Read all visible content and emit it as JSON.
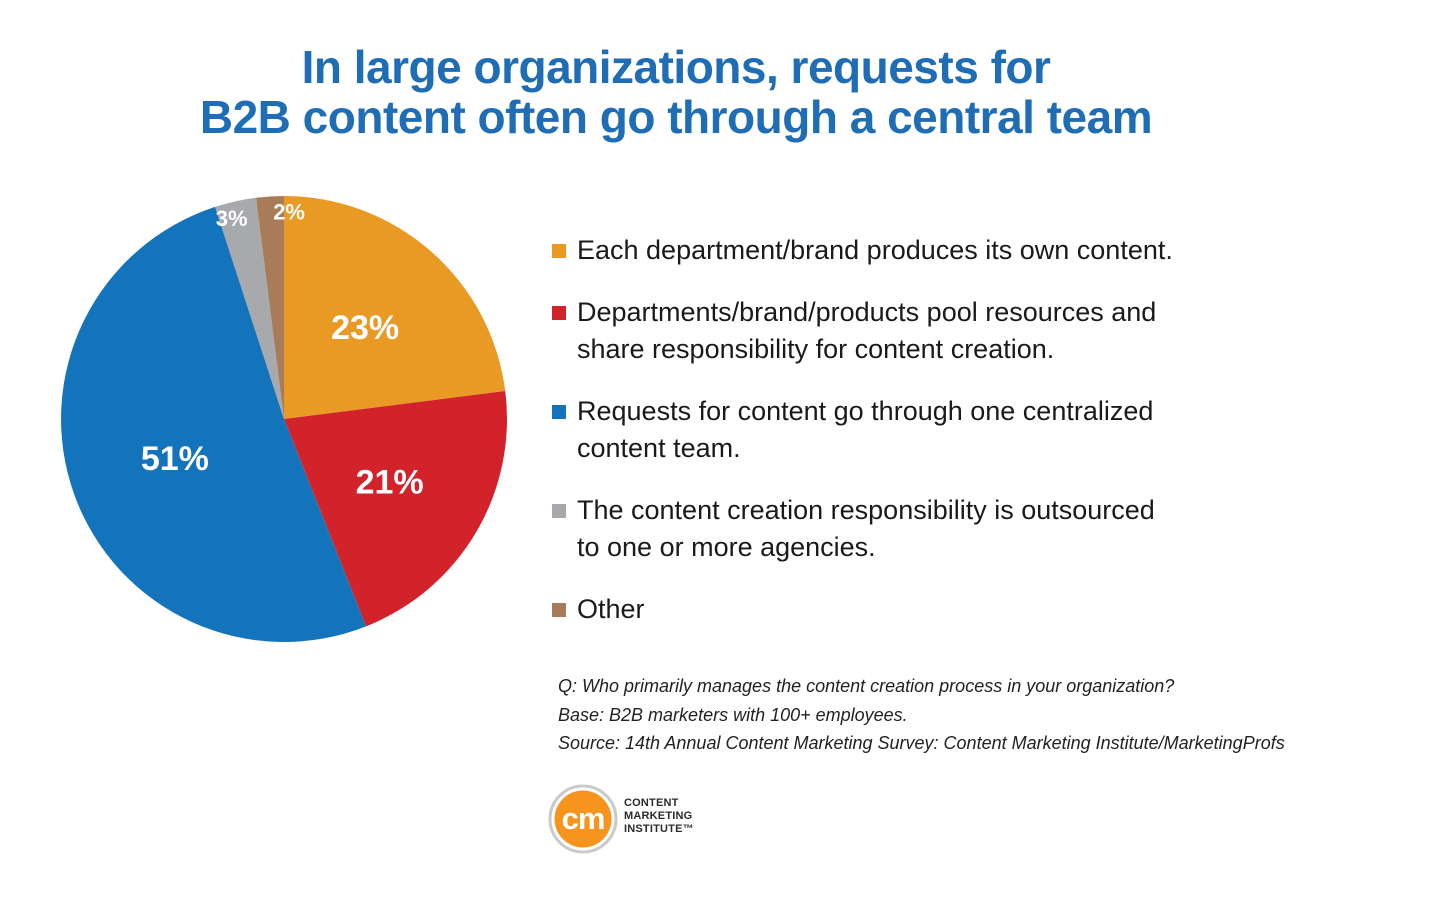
{
  "title": {
    "line1": "In large organizations, requests for",
    "line2": "B2B content often go through a central team"
  },
  "chart_data": {
    "type": "pie",
    "slices": [
      {
        "label": "Each department/brand produces its own content.",
        "value": 23,
        "display": "23%",
        "color": "#e99a24"
      },
      {
        "label": "Departments/brand/products pool resources and share responsibility for content creation.",
        "value": 21,
        "display": "21%",
        "color": "#d2232a"
      },
      {
        "label": "Requests for content go through one centralized content team.",
        "value": 51,
        "display": "51%",
        "color": "#1474bb"
      },
      {
        "label": "The content creation responsibility is outsourced to one or more agencies.",
        "value": 3,
        "display": "3%",
        "color": "#a7a9ac"
      },
      {
        "label": "Other",
        "value": 2,
        "display": "2%",
        "color": "#a97c59"
      }
    ],
    "legend_position": "right"
  },
  "legend": {
    "items": [
      {
        "lines": [
          "Each department/brand produces its own content."
        ]
      },
      {
        "lines": [
          "Departments/brand/products pool resources and",
          "share responsibility for content creation."
        ]
      },
      {
        "lines": [
          "Requests for content go through one centralized",
          "content team."
        ]
      },
      {
        "lines": [
          "The content creation responsibility is outsourced",
          "to one or more agencies."
        ]
      },
      {
        "lines": [
          "Other"
        ]
      }
    ]
  },
  "footnote": {
    "question": "Q: Who primarily manages the content creation process in your organization?",
    "base": "Base: B2B marketers with 100+ employees.",
    "source": "Source: 14th Annual Content Marketing Survey: Content Marketing Institute/MarketingProfs"
  },
  "logo": {
    "mark": "cm",
    "line1": "CONTENT",
    "line2": "MARKETING",
    "line3": "INSTITUTE™",
    "ring_color": "#f7941d"
  }
}
